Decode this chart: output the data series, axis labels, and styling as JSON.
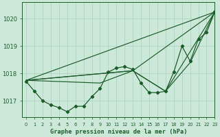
{
  "title": "Graphe pression niveau de la mer (hPa)",
  "background_color": "#cce8d8",
  "grid_color": "#aaccbb",
  "line_color": "#1a5c2a",
  "xlim": [
    -0.5,
    23
  ],
  "ylim": [
    1016.4,
    1020.6
  ],
  "yticks": [
    1017,
    1018,
    1019,
    1020
  ],
  "xticks": [
    0,
    1,
    2,
    3,
    4,
    5,
    6,
    7,
    8,
    9,
    10,
    11,
    12,
    13,
    14,
    15,
    16,
    17,
    18,
    19,
    20,
    21,
    22,
    23
  ],
  "main_series": [
    1017.7,
    1017.35,
    1017.0,
    1016.85,
    1016.75,
    1016.6,
    1016.8,
    1016.8,
    1017.15,
    1017.45,
    1018.05,
    1018.2,
    1018.25,
    1018.15,
    1017.65,
    1017.3,
    1017.3,
    1017.35,
    1018.05,
    1019.0,
    1018.45,
    1019.25,
    1019.5,
    1020.25
  ],
  "straight_lines": [
    [
      [
        0,
        1017.75
      ],
      [
        23,
        1020.25
      ]
    ],
    [
      [
        0,
        1017.75
      ],
      [
        13,
        1018.1
      ],
      [
        23,
        1020.25
      ]
    ],
    [
      [
        0,
        1017.75
      ],
      [
        13,
        1018.1
      ],
      [
        17,
        1017.35
      ],
      [
        23,
        1020.25
      ]
    ],
    [
      [
        0,
        1017.75
      ],
      [
        9,
        1017.65
      ],
      [
        13,
        1018.1
      ],
      [
        17,
        1017.35
      ],
      [
        20,
        1018.4
      ],
      [
        23,
        1020.25
      ]
    ]
  ]
}
